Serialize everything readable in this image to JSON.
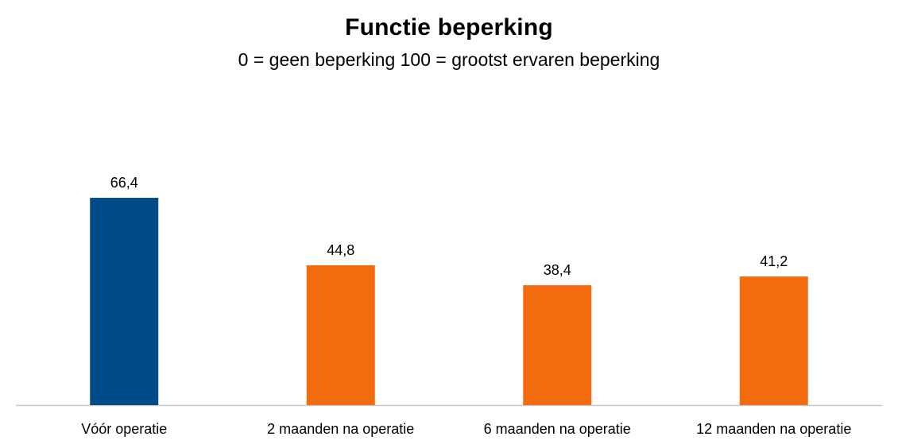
{
  "chart_data": {
    "type": "bar",
    "title": "Functie beperking",
    "subtitle": "0 = geen beperking  100 = grootst ervaren beperking",
    "categories": [
      "Vóór operatie",
      "2 maanden na operatie",
      "6 maanden na operatie",
      "12 maanden na operatie"
    ],
    "values": [
      66.4,
      44.8,
      38.4,
      41.2
    ],
    "value_labels": [
      "66,4",
      "44,8",
      "38,4",
      "41,2"
    ],
    "bar_colors": [
      "#004b87",
      "#f26b0f",
      "#f26b0f",
      "#f26b0f"
    ],
    "axis_color": "#c8c8c8",
    "ylim": [
      0,
      100
    ],
    "grid": false,
    "legend": "none",
    "xlabel": "",
    "ylabel": ""
  }
}
